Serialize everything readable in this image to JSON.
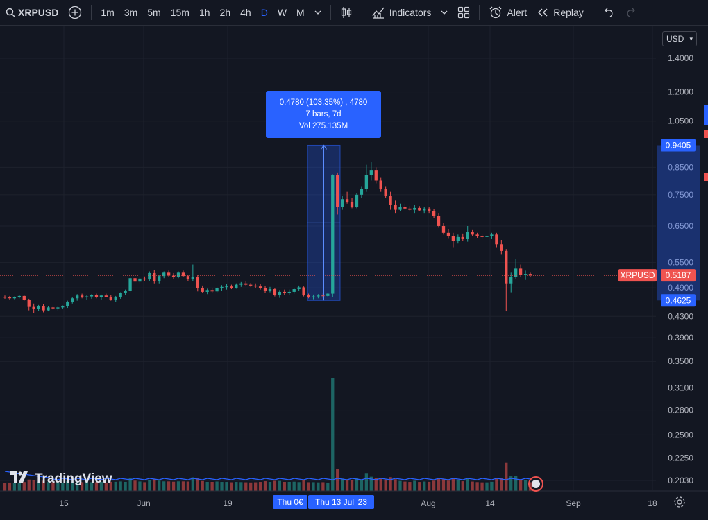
{
  "toolbar": {
    "symbol": "XRPUSD",
    "intervals": [
      "1m",
      "3m",
      "5m",
      "15m",
      "1h",
      "2h",
      "4h",
      "D",
      "W",
      "M"
    ],
    "active_interval": "D",
    "indicators_label": "Indicators",
    "alert_label": "Alert",
    "replay_label": "Replay"
  },
  "currency_select": "USD",
  "price_axis": {
    "labels": [
      "1.4000",
      "1.2000",
      "1.0500",
      "0.8500",
      "0.7500",
      "0.6500",
      "0.5500",
      "0.4900",
      "0.4300",
      "0.3900",
      "0.3500",
      "0.3100",
      "0.2800",
      "0.2500",
      "0.2250",
      "0.2030"
    ],
    "highlight_top": "0.9405",
    "highlight_bottom": "0.4625",
    "current_symbol": "XRPUSD",
    "current_price": "0.5187"
  },
  "time_axis": {
    "labels": [
      "15",
      "Jun",
      "19",
      "Aug",
      "14",
      "Sep",
      "18"
    ],
    "range_start": "Thu 0€",
    "range_end": "Thu 13 Jul '23"
  },
  "measure_tooltip": {
    "line1": "0.4780 (103.35%) , 4780",
    "line2": "7 bars, 7d",
    "line3": "Vol 275.135M"
  },
  "branding": "TradingView",
  "colors": {
    "background": "#131722",
    "up": "#26a69a",
    "down": "#ef5350",
    "accent": "#2962ff"
  },
  "chart_data": {
    "type": "candlestick",
    "xlabels": [
      "15",
      "Jun",
      "19",
      "Aug",
      "14",
      "Sep",
      "18"
    ],
    "y_scale": "log",
    "candles": [
      [
        0.47,
        0.473,
        0.466,
        0.469
      ],
      [
        0.469,
        0.472,
        0.464,
        0.467
      ],
      [
        0.467,
        0.471,
        0.465,
        0.47
      ],
      [
        0.47,
        0.474,
        0.467,
        0.472
      ],
      [
        0.472,
        0.473,
        0.462,
        0.464
      ],
      [
        0.464,
        0.466,
        0.442,
        0.449
      ],
      [
        0.449,
        0.456,
        0.437,
        0.445
      ],
      [
        0.445,
        0.453,
        0.441,
        0.45
      ],
      [
        0.45,
        0.455,
        0.438,
        0.442
      ],
      [
        0.442,
        0.45,
        0.44,
        0.448
      ],
      [
        0.448,
        0.452,
        0.443,
        0.446
      ],
      [
        0.446,
        0.45,
        0.442,
        0.448
      ],
      [
        0.448,
        0.452,
        0.445,
        0.45
      ],
      [
        0.45,
        0.462,
        0.447,
        0.46
      ],
      [
        0.46,
        0.47,
        0.456,
        0.467
      ],
      [
        0.467,
        0.476,
        0.462,
        0.473
      ],
      [
        0.473,
        0.477,
        0.467,
        0.47
      ],
      [
        0.47,
        0.474,
        0.464,
        0.471
      ],
      [
        0.471,
        0.476,
        0.466,
        0.474
      ],
      [
        0.474,
        0.477,
        0.467,
        0.469
      ],
      [
        0.469,
        0.475,
        0.463,
        0.473
      ],
      [
        0.473,
        0.477,
        0.469,
        0.47
      ],
      [
        0.47,
        0.474,
        0.462,
        0.464
      ],
      [
        0.464,
        0.472,
        0.46,
        0.469
      ],
      [
        0.469,
        0.48,
        0.466,
        0.478
      ],
      [
        0.478,
        0.486,
        0.474,
        0.483
      ],
      [
        0.483,
        0.515,
        0.48,
        0.512
      ],
      [
        0.512,
        0.52,
        0.5,
        0.504
      ],
      [
        0.504,
        0.515,
        0.5,
        0.511
      ],
      [
        0.511,
        0.516,
        0.505,
        0.509
      ],
      [
        0.509,
        0.528,
        0.506,
        0.524
      ],
      [
        0.524,
        0.532,
        0.5,
        0.505
      ],
      [
        0.505,
        0.52,
        0.5,
        0.517
      ],
      [
        0.517,
        0.528,
        0.512,
        0.525
      ],
      [
        0.525,
        0.53,
        0.514,
        0.518
      ],
      [
        0.518,
        0.524,
        0.51,
        0.514
      ],
      [
        0.514,
        0.528,
        0.512,
        0.525
      ],
      [
        0.525,
        0.53,
        0.514,
        0.517
      ],
      [
        0.517,
        0.52,
        0.505,
        0.51
      ],
      [
        0.51,
        0.545,
        0.505,
        0.514
      ],
      [
        0.514,
        0.52,
        0.482,
        0.489
      ],
      [
        0.489,
        0.495,
        0.478,
        0.481
      ],
      [
        0.481,
        0.488,
        0.476,
        0.485
      ],
      [
        0.485,
        0.49,
        0.478,
        0.482
      ],
      [
        0.482,
        0.492,
        0.478,
        0.489
      ],
      [
        0.489,
        0.496,
        0.484,
        0.492
      ],
      [
        0.492,
        0.498,
        0.486,
        0.493
      ],
      [
        0.493,
        0.497,
        0.487,
        0.49
      ],
      [
        0.49,
        0.5,
        0.488,
        0.497
      ],
      [
        0.497,
        0.503,
        0.492,
        0.5
      ],
      [
        0.5,
        0.505,
        0.495,
        0.497
      ],
      [
        0.497,
        0.501,
        0.492,
        0.495
      ],
      [
        0.495,
        0.5,
        0.49,
        0.493
      ],
      [
        0.493,
        0.498,
        0.486,
        0.489
      ],
      [
        0.489,
        0.494,
        0.478,
        0.484
      ],
      [
        0.484,
        0.492,
        0.48,
        0.487
      ],
      [
        0.487,
        0.489,
        0.471,
        0.474
      ],
      [
        0.474,
        0.485,
        0.468,
        0.481
      ],
      [
        0.481,
        0.486,
        0.474,
        0.478
      ],
      [
        0.478,
        0.486,
        0.474,
        0.481
      ],
      [
        0.481,
        0.49,
        0.477,
        0.487
      ],
      [
        0.487,
        0.495,
        0.484,
        0.491
      ],
      [
        0.491,
        0.493,
        0.471,
        0.474
      ],
      [
        0.474,
        0.477,
        0.467,
        0.47
      ],
      [
        0.47,
        0.475,
        0.465,
        0.471
      ],
      [
        0.471,
        0.476,
        0.467,
        0.473
      ],
      [
        0.473,
        0.478,
        0.468,
        0.472
      ],
      [
        0.472,
        0.478,
        0.47,
        0.477
      ],
      [
        0.477,
        0.823,
        0.47,
        0.82
      ],
      [
        0.82,
        0.83,
        0.685,
        0.71
      ],
      [
        0.71,
        0.745,
        0.7,
        0.735
      ],
      [
        0.735,
        0.76,
        0.72,
        0.725
      ],
      [
        0.725,
        0.74,
        0.705,
        0.71
      ],
      [
        0.71,
        0.755,
        0.705,
        0.75
      ],
      [
        0.75,
        0.78,
        0.74,
        0.77
      ],
      [
        0.77,
        0.86,
        0.76,
        0.82
      ],
      [
        0.82,
        0.87,
        0.8,
        0.84
      ],
      [
        0.84,
        0.85,
        0.79,
        0.8
      ],
      [
        0.8,
        0.81,
        0.76,
        0.77
      ],
      [
        0.77,
        0.78,
        0.74,
        0.745
      ],
      [
        0.745,
        0.76,
        0.7,
        0.715
      ],
      [
        0.715,
        0.73,
        0.69,
        0.7
      ],
      [
        0.7,
        0.72,
        0.695,
        0.71
      ],
      [
        0.71,
        0.72,
        0.7,
        0.704
      ],
      [
        0.704,
        0.712,
        0.695,
        0.7
      ],
      [
        0.7,
        0.716,
        0.69,
        0.706
      ],
      [
        0.706,
        0.712,
        0.695,
        0.698
      ],
      [
        0.698,
        0.71,
        0.69,
        0.704
      ],
      [
        0.704,
        0.708,
        0.69,
        0.695
      ],
      [
        0.695,
        0.702,
        0.675,
        0.68
      ],
      [
        0.68,
        0.69,
        0.645,
        0.65
      ],
      [
        0.65,
        0.66,
        0.625,
        0.63
      ],
      [
        0.63,
        0.64,
        0.615,
        0.62
      ],
      [
        0.62,
        0.63,
        0.59,
        0.608
      ],
      [
        0.608,
        0.625,
        0.6,
        0.618
      ],
      [
        0.618,
        0.628,
        0.608,
        0.612
      ],
      [
        0.612,
        0.65,
        0.605,
        0.632
      ],
      [
        0.632,
        0.638,
        0.62,
        0.625
      ],
      [
        0.625,
        0.63,
        0.616,
        0.62
      ],
      [
        0.62,
        0.626,
        0.614,
        0.618
      ],
      [
        0.618,
        0.624,
        0.612,
        0.62
      ],
      [
        0.62,
        0.63,
        0.614,
        0.625
      ],
      [
        0.625,
        0.63,
        0.59,
        0.598
      ],
      [
        0.598,
        0.61,
        0.57,
        0.58
      ],
      [
        0.58,
        0.585,
        0.44,
        0.5
      ],
      [
        0.5,
        0.525,
        0.48,
        0.515
      ],
      [
        0.515,
        0.56,
        0.51,
        0.535
      ],
      [
        0.535,
        0.545,
        0.515,
        0.52
      ],
      [
        0.52,
        0.53,
        0.508,
        0.522
      ],
      [
        0.522,
        0.525,
        0.514,
        0.519
      ]
    ],
    "volume_max": 275.135,
    "measure": {
      "from": 0.4625,
      "to": 0.9405,
      "bars": 7,
      "days": "7d",
      "change": "0.4780 (103.35%)"
    }
  }
}
